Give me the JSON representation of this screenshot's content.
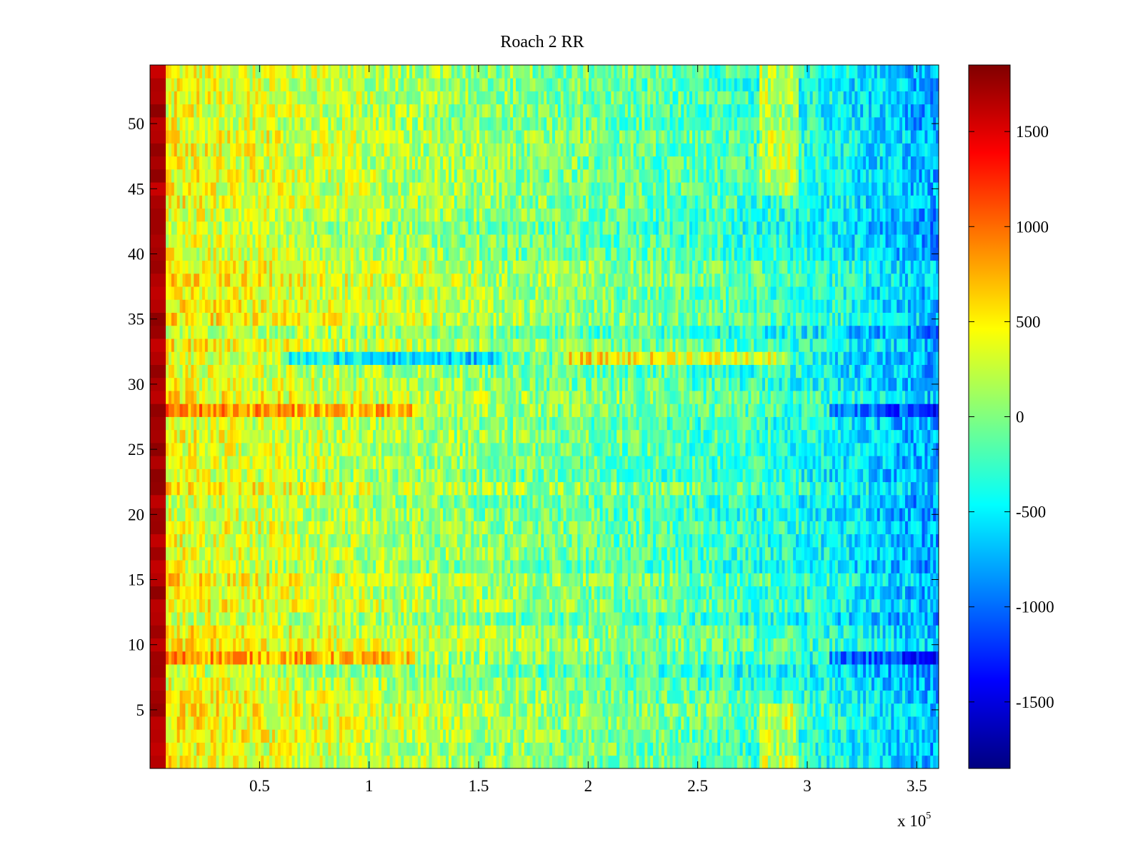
{
  "chart_data": {
    "type": "heatmap",
    "title": "Roach 2 RR",
    "xlabel": "",
    "ylabel": "",
    "x_multiplier_label": {
      "base": "x 10",
      "exponent": "5"
    },
    "xlim": [
      0,
      3.6
    ],
    "ylim": [
      0.5,
      54.5
    ],
    "x_ticks": [
      0.5,
      1,
      1.5,
      2,
      2.5,
      3,
      3.5
    ],
    "x_tick_labels": [
      "0.5",
      "1",
      "1.5",
      "2",
      "2.5",
      "3",
      "3.5"
    ],
    "y_ticks": [
      5,
      10,
      15,
      20,
      25,
      30,
      35,
      40,
      45,
      50
    ],
    "y_tick_labels": [
      "5",
      "10",
      "15",
      "20",
      "25",
      "30",
      "35",
      "40",
      "45",
      "50"
    ],
    "rows": 54,
    "colorbar": {
      "colormap": "jet",
      "clim": [
        -1850,
        1850
      ],
      "ticks": [
        1500,
        1000,
        500,
        0,
        -500,
        -1000,
        -1500
      ],
      "tick_labels": [
        "1500",
        "1000",
        "500",
        "0",
        "-500",
        "-1000",
        "-1500"
      ]
    },
    "grid": false,
    "pattern": {
      "first_column_value": 1700,
      "trend_left_to_right": [
        450,
        300,
        150,
        0,
        -150,
        -350,
        -800
      ],
      "notable_rows": [
        {
          "row": 32,
          "description": "strip low on left, high around 2e5-2.9e5"
        },
        {
          "row": 28,
          "description": "high on left, very low on far right"
        },
        {
          "row": 9,
          "description": "high on left, very low on far right"
        }
      ]
    }
  }
}
